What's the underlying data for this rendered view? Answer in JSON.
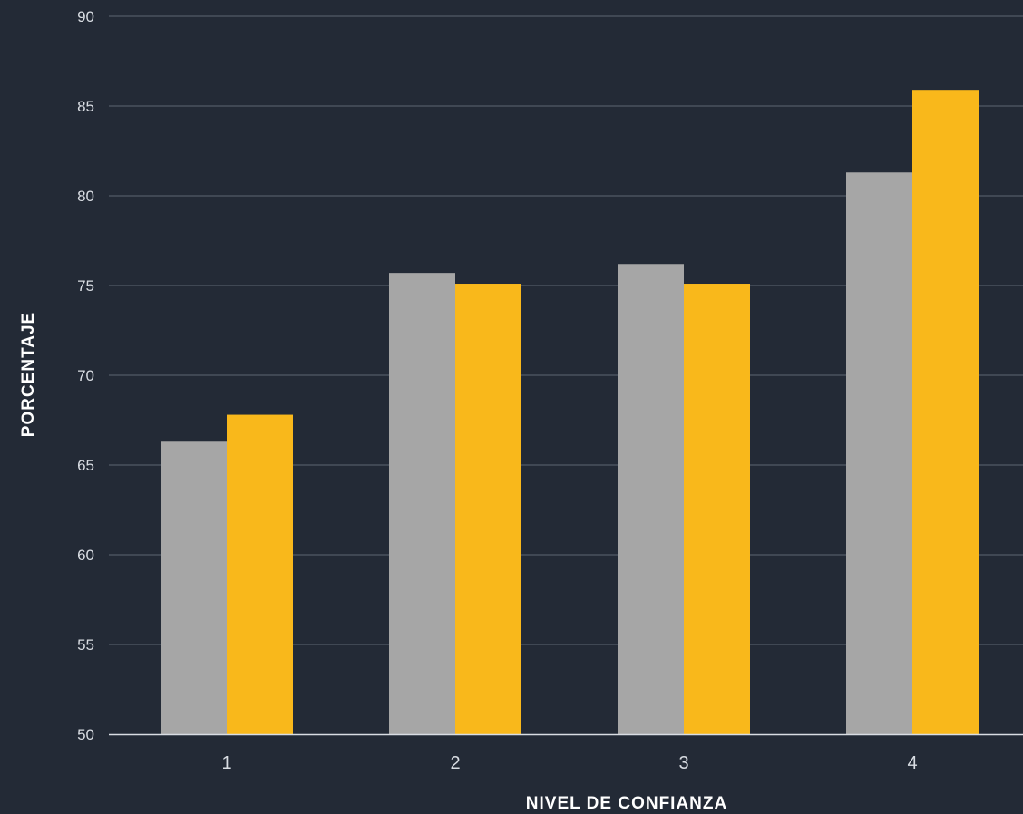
{
  "chart_data": {
    "type": "bar",
    "xlabel": "NIVEL DE CONFIANZA",
    "ylabel": "PORCENTAJE",
    "categories": [
      "1",
      "2",
      "3",
      "4"
    ],
    "series": [
      {
        "color": "#a6a6a6",
        "values": [
          66.3,
          75.7,
          76.2,
          81.3
        ]
      },
      {
        "color": "#f9b81b",
        "values": [
          67.8,
          75.1,
          75.1,
          85.9
        ]
      }
    ],
    "ylim": [
      50,
      90
    ],
    "yticks": [
      50,
      55,
      60,
      65,
      70,
      75,
      80,
      85,
      90
    ],
    "grid": true,
    "legend": "none"
  },
  "colors": {
    "background": "#232a36",
    "grid": "#4a525e",
    "axis": "#d9dde3",
    "text": "#d9dde3"
  }
}
